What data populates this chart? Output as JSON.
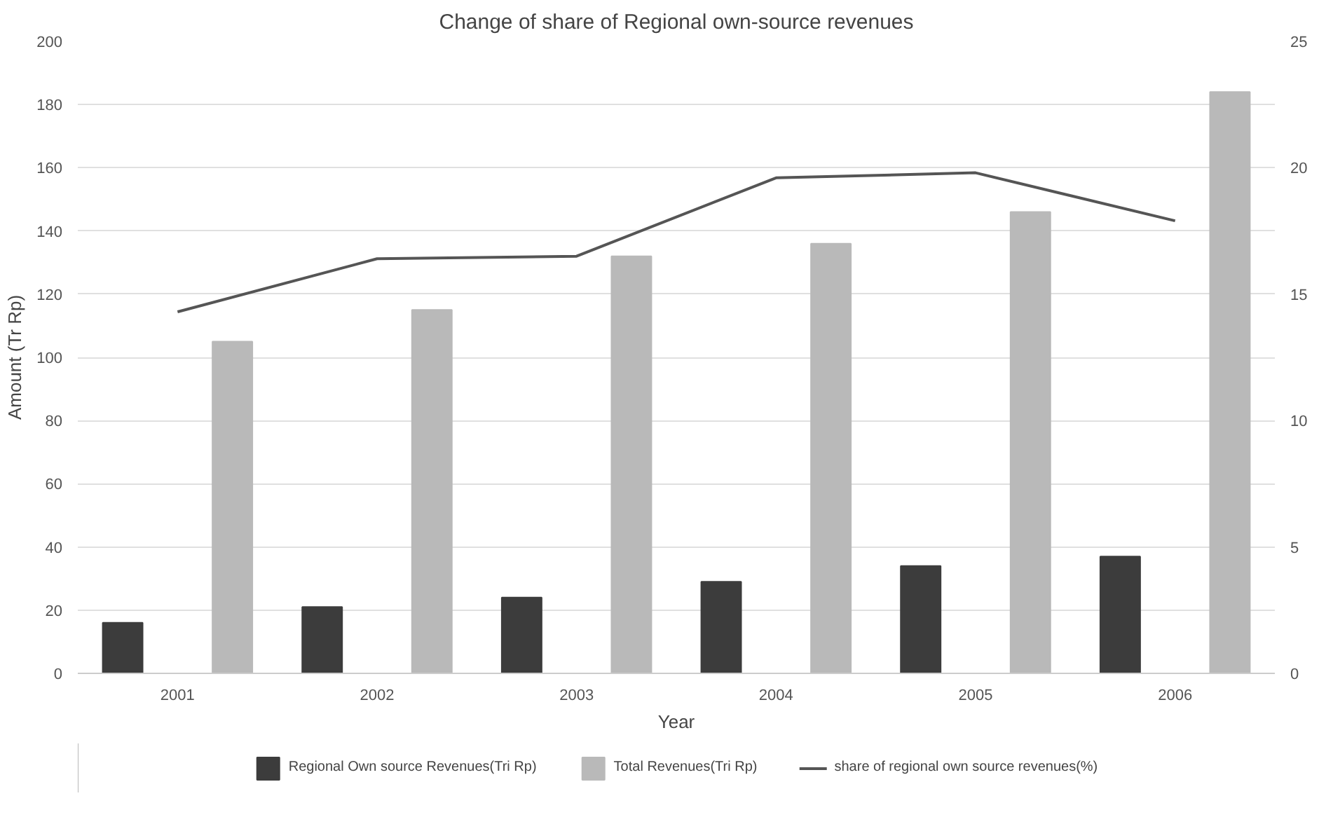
{
  "chart_data": {
    "type": "bar",
    "title": "Change of share of Regional own-source revenues",
    "xlabel": "Year",
    "ylabel": "Amount (Tr Rp)",
    "categories": [
      "2001",
      "2002",
      "2003",
      "2004",
      "2005",
      "2006"
    ],
    "series": [
      {
        "name": "Regional Own source Revenues(Tri Rp)",
        "color": "#3c3c3c",
        "values": [
          16,
          21,
          24,
          29,
          34,
          37
        ]
      },
      {
        "name": "Total Revenues(Tri Rp)",
        "color": "#b9b9b9",
        "values": [
          105,
          115,
          132,
          136,
          146,
          184
        ]
      },
      {
        "name": "share of regional own source revenues(%)",
        "color": "#555555",
        "type": "line",
        "axis": "y2",
        "values": [
          14.3,
          16.4,
          16.5,
          19.6,
          19.8,
          17.9
        ]
      }
    ],
    "ylim": [
      0,
      200
    ],
    "yticks": [
      0,
      20,
      40,
      60,
      80,
      100,
      120,
      140,
      160,
      180,
      200
    ],
    "y2lim": [
      0,
      25
    ],
    "y2ticks": [
      0,
      5,
      10,
      15,
      20,
      25
    ],
    "grid": "y",
    "legend": "bottom",
    "marker": "none",
    "line_style": "solid"
  }
}
